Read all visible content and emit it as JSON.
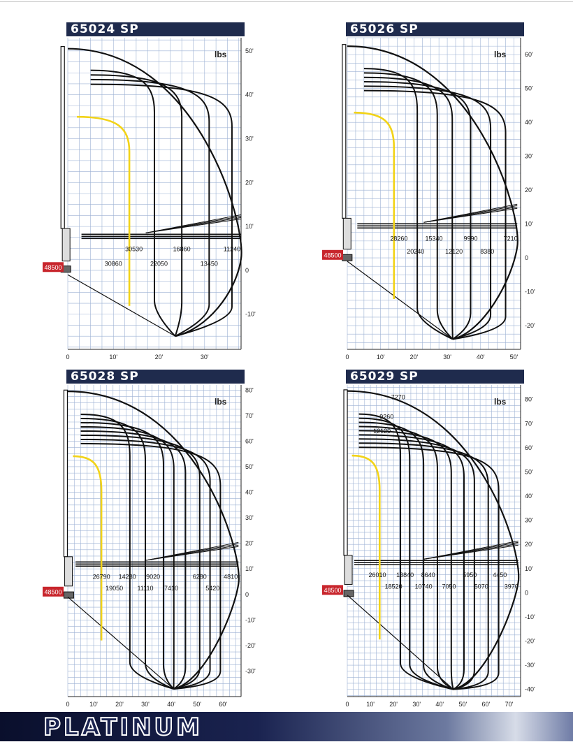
{
  "footer": {
    "brand": "PLATINUM"
  },
  "chart_data": [
    {
      "type": "line",
      "title": "65024 SP",
      "unit_label": "lbs",
      "base_capacity": "48500",
      "x_ticks": [
        "0",
        "10'",
        "20'",
        "30'"
      ],
      "y_ticks": [
        "50'",
        "40'",
        "30'",
        "20'",
        "10'",
        "0",
        "-10'"
      ],
      "xlim": [
        0,
        38
      ],
      "ylim": [
        -18,
        53
      ],
      "outer_reach": 38,
      "labels_upper": [
        {
          "x": 14.5,
          "text": "30530"
        },
        {
          "x": 25,
          "text": "16860"
        },
        {
          "x": 36,
          "text": "11240"
        }
      ],
      "labels_lower": [
        {
          "x": 10,
          "text": "30860"
        },
        {
          "x": 20,
          "text": "22050"
        },
        {
          "x": 31,
          "text": "13450"
        }
      ],
      "highlight_curve_x": 13.5,
      "curves_x": [
        19,
        25,
        31,
        36
      ]
    },
    {
      "type": "line",
      "title": "65026 SP",
      "unit_label": "lbs",
      "base_capacity": "48500",
      "x_ticks": [
        "0",
        "10'",
        "20'",
        "30'",
        "40'",
        "50'"
      ],
      "y_ticks": [
        "60'",
        "50'",
        "40'",
        "30'",
        "20'",
        "10'",
        "0",
        "-10'",
        "-20'"
      ],
      "xlim": [
        0,
        52
      ],
      "ylim": [
        -27,
        65
      ],
      "outer_reach": 51,
      "labels_upper": [
        {
          "x": 15.5,
          "text": "28260"
        },
        {
          "x": 26,
          "text": "15340"
        },
        {
          "x": 37,
          "text": "9990"
        },
        {
          "x": 49,
          "text": "7210"
        }
      ],
      "labels_lower": [
        {
          "x": 20.5,
          "text": "20240"
        },
        {
          "x": 32,
          "text": "12120"
        },
        {
          "x": 42,
          "text": "8380"
        }
      ],
      "highlight_curve_x": 14,
      "curves_x": [
        21,
        27,
        31.5,
        37,
        43,
        47.5
      ]
    },
    {
      "type": "line",
      "title": "65028 SP",
      "unit_label": "lbs",
      "base_capacity": "48500",
      "x_ticks": [
        "0",
        "10'",
        "20'",
        "30'",
        "40'",
        "50'",
        "60'"
      ],
      "y_ticks": [
        "80'",
        "70'",
        "60'",
        "50'",
        "40'",
        "30'",
        "20'",
        "10'",
        "0",
        "-10'",
        "-20'",
        "-30'"
      ],
      "xlim": [
        0,
        67
      ],
      "ylim": [
        -40,
        82
      ],
      "outer_reach": 66,
      "labels_upper": [
        {
          "x": 13,
          "text": "26790"
        },
        {
          "x": 23,
          "text": "14280"
        },
        {
          "x": 33,
          "text": "9020"
        },
        {
          "x": 51,
          "text": "6280"
        },
        {
          "x": 63,
          "text": "4810"
        }
      ],
      "labels_lower": [
        {
          "x": 18,
          "text": "19050"
        },
        {
          "x": 30,
          "text": "11110"
        },
        {
          "x": 40,
          "text": "7410"
        },
        {
          "x": 56,
          "text": "5420"
        }
      ],
      "highlight_curve_x": 13,
      "curves_x": [
        24,
        30,
        37,
        41,
        45.5,
        51,
        55,
        59
      ]
    },
    {
      "type": "line",
      "title": "65029 SP",
      "unit_label": "lbs",
      "base_capacity": "48500",
      "x_ticks": [
        "0",
        "10'",
        "20'",
        "30'",
        "40'",
        "50'",
        "60'",
        "70'"
      ],
      "y_ticks": [
        "80'",
        "70'",
        "60'",
        "50'",
        "40'",
        "30'",
        "20'",
        "10'",
        "0",
        "-10'",
        "-20'",
        "-30'",
        "-40'"
      ],
      "xlim": [
        0,
        75
      ],
      "ylim": [
        -43,
        86
      ],
      "outer_reach": 74,
      "labels_upper": [
        {
          "x": 13,
          "text": "26010"
        },
        {
          "x": 25,
          "text": "13840"
        },
        {
          "x": 35,
          "text": "8640"
        },
        {
          "x": 53,
          "text": "5950"
        },
        {
          "x": 66,
          "text": "4450"
        }
      ],
      "labels_lower": [
        {
          "x": 20,
          "text": "18520"
        },
        {
          "x": 33,
          "text": "10740"
        },
        {
          "x": 44,
          "text": "7050"
        },
        {
          "x": 58,
          "text": "5070"
        },
        {
          "x": 71,
          "text": "3970"
        }
      ],
      "labels_top": [
        {
          "x": 22,
          "y": 80,
          "text": "7270"
        },
        {
          "x": 17,
          "y": 72,
          "text": "9260"
        },
        {
          "x": 15,
          "y": 66,
          "text": "12120"
        }
      ],
      "highlight_curve_x": 14,
      "curves_x": [
        23,
        27,
        33,
        39,
        45,
        50.5,
        55,
        61,
        65.5
      ]
    }
  ]
}
